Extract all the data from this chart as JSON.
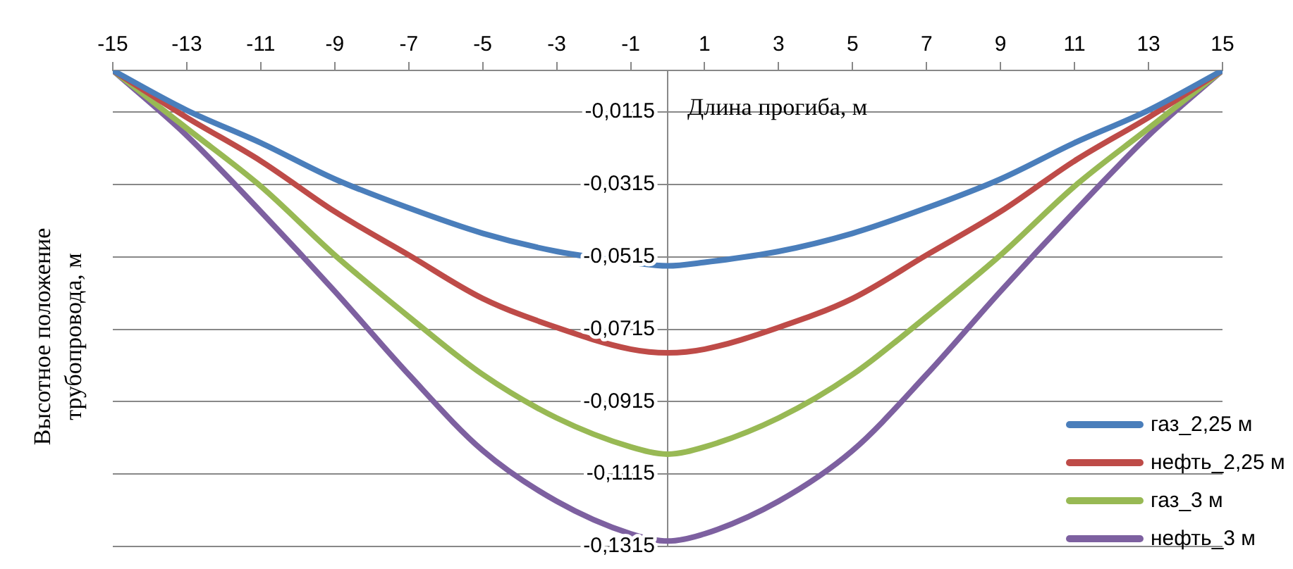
{
  "chart_data": {
    "type": "line",
    "xlabel": "Длина прогиба, м",
    "ylabel": "Высотное положение трубопровода, м",
    "x": [
      -15,
      -13,
      -11,
      -9,
      -7,
      -5,
      -3,
      -1,
      0,
      1,
      3,
      5,
      7,
      9,
      11,
      13,
      15
    ],
    "series": [
      {
        "name": "газ_2,25 м",
        "color": "#4a7ebb",
        "values": [
          0,
          -0.011,
          -0.02,
          -0.03,
          -0.038,
          -0.045,
          -0.05,
          -0.053,
          -0.054,
          -0.053,
          -0.05,
          -0.045,
          -0.038,
          -0.03,
          -0.02,
          -0.011,
          0
        ]
      },
      {
        "name": "нефть_2,25 м",
        "color": "#be4b48",
        "values": [
          0,
          -0.013,
          -0.025,
          -0.039,
          -0.051,
          -0.063,
          -0.071,
          -0.077,
          -0.078,
          -0.077,
          -0.071,
          -0.063,
          -0.051,
          -0.039,
          -0.025,
          -0.013,
          0
        ]
      },
      {
        "name": "газ_3 м",
        "color": "#98b954",
        "values": [
          0,
          -0.016,
          -0.032,
          -0.051,
          -0.068,
          -0.084,
          -0.096,
          -0.104,
          -0.106,
          -0.104,
          -0.096,
          -0.084,
          -0.068,
          -0.051,
          -0.032,
          -0.016,
          0
        ]
      },
      {
        "name": "нефть_3 м",
        "color": "#7d60a0",
        "values": [
          0,
          -0.018,
          -0.039,
          -0.061,
          -0.084,
          -0.105,
          -0.119,
          -0.128,
          -0.13,
          -0.128,
          -0.119,
          -0.105,
          -0.084,
          -0.061,
          -0.039,
          -0.018,
          0
        ]
      }
    ],
    "xlim": [
      -15,
      15
    ],
    "xticks": [
      -15,
      -13,
      -11,
      -9,
      -7,
      -5,
      -3,
      -1,
      1,
      3,
      5,
      7,
      9,
      11,
      13,
      15
    ],
    "ylim": [
      -0.1315,
      0
    ],
    "yticks": [
      {
        "value": -0.1315,
        "label": "-0,1315"
      },
      {
        "value": -0.1115,
        "label": "-0,1115"
      },
      {
        "value": -0.0915,
        "label": "-0,0915"
      },
      {
        "value": -0.0715,
        "label": "-0,0715"
      },
      {
        "value": -0.0515,
        "label": "-0,0515"
      },
      {
        "value": -0.0315,
        "label": "-0,0315"
      },
      {
        "value": -0.0115,
        "label": "-0,0115"
      }
    ],
    "grid": "y",
    "legend": "bottom right",
    "marker": "none",
    "line_style": "solid"
  }
}
